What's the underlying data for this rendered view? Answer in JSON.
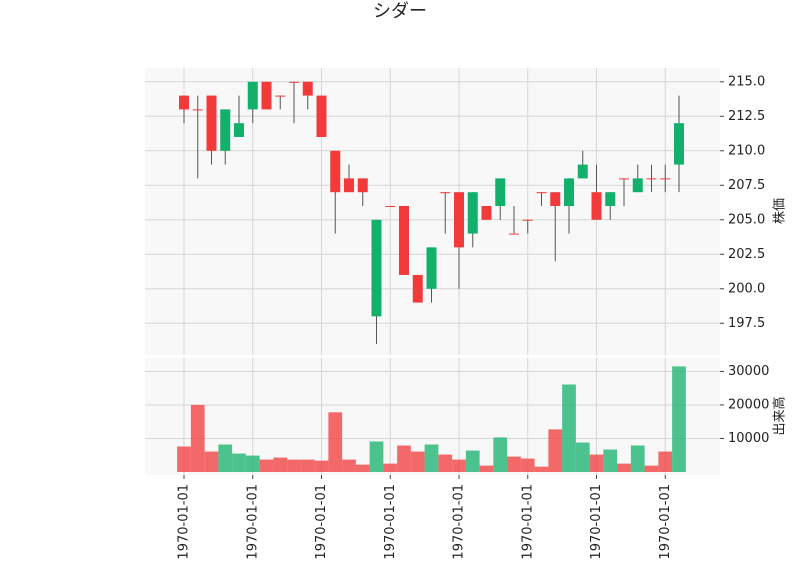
{
  "chart_data": {
    "type": "candlestick",
    "title": "シダー",
    "ylabel": "株価",
    "y2label": "出来高",
    "categories": [
      "1970-01-01",
      null,
      null,
      null,
      null,
      "1970-01-01",
      null,
      null,
      null,
      null,
      "1970-01-01",
      null,
      null,
      null,
      null,
      "1970-01-01",
      null,
      null,
      null,
      null,
      "1970-01-01",
      null,
      null,
      null,
      null,
      "1970-01-01",
      null,
      null,
      null,
      null,
      "1970-01-01",
      null,
      null,
      null,
      null,
      "1970-01-01",
      null
    ],
    "open": [
      214,
      213,
      214,
      210,
      211,
      213,
      215,
      214,
      215,
      215,
      214,
      210,
      208,
      208,
      198,
      206,
      206,
      201,
      200,
      207,
      207,
      204,
      206,
      206,
      204,
      205,
      207,
      207,
      206,
      208,
      207,
      206,
      208,
      207,
      208,
      208,
      209
    ],
    "high": [
      214,
      214,
      214,
      213,
      214,
      215,
      215,
      214,
      215,
      215,
      214,
      210,
      209,
      208,
      205,
      206,
      206,
      201,
      203,
      207,
      207,
      207,
      206,
      208,
      206,
      205,
      207,
      207,
      208,
      210,
      209,
      207,
      208,
      209,
      209,
      209,
      214
    ],
    "low": [
      212,
      208,
      209,
      209,
      211,
      212,
      213,
      213,
      212,
      213,
      211,
      204,
      207,
      206,
      196,
      206,
      201,
      199,
      199,
      204,
      200,
      203,
      205,
      205,
      204,
      204,
      206,
      202,
      204,
      208,
      205,
      205,
      206,
      207,
      207,
      207,
      207
    ],
    "close": [
      213,
      213,
      210,
      213,
      212,
      215,
      213,
      214,
      215,
      214,
      211,
      207,
      207,
      207,
      205,
      206,
      201,
      199,
      203,
      207,
      203,
      207,
      205,
      208,
      204,
      205,
      207,
      206,
      208,
      209,
      205,
      207,
      208,
      208,
      208,
      208,
      212
    ],
    "volume": [
      7600,
      20000,
      6100,
      8200,
      5500,
      4900,
      3700,
      4300,
      3700,
      3700,
      3400,
      17800,
      3700,
      2200,
      9100,
      2500,
      7900,
      6100,
      8200,
      5200,
      3700,
      6400,
      1900,
      10300,
      4600,
      4000,
      1600,
      12700,
      26100,
      8800,
      5200,
      6700,
      2500,
      7900,
      1900,
      6100,
      31500
    ],
    "up_color": "#13b06b",
    "down_color": "#f23a3a",
    "background": "#f8f8f8",
    "grid": true,
    "ylim": [
      195.2,
      216.0
    ],
    "yticks": [
      {
        "value": 197.5,
        "label": "197.5"
      },
      {
        "value": 200,
        "label": "200.0"
      },
      {
        "value": 202.5,
        "label": "202.5"
      },
      {
        "value": 205,
        "label": "205.0"
      },
      {
        "value": 207.5,
        "label": "207.5"
      },
      {
        "value": 210,
        "label": "210.0"
      },
      {
        "value": 212.5,
        "label": "212.5"
      },
      {
        "value": 215,
        "label": "215.0"
      }
    ],
    "y2lim": [
      0,
      34000
    ],
    "y2ticks": [
      10000,
      20000,
      30000
    ]
  }
}
